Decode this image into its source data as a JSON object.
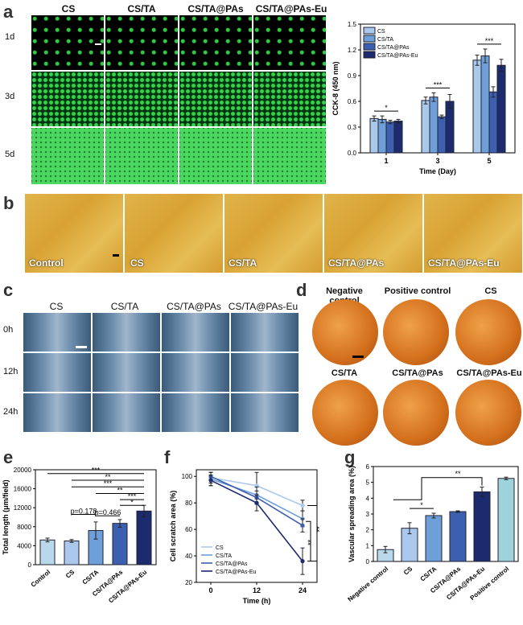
{
  "panels": {
    "a": "a",
    "b": "b",
    "c": "c",
    "d": "d",
    "e": "e",
    "f": "f",
    "g": "g"
  },
  "a": {
    "columns": [
      "CS",
      "CS/TA",
      "CS/TA@PAs",
      "CS/TA@PAs-Eu"
    ],
    "rows": [
      "1d",
      "3d",
      "5d"
    ]
  },
  "b": {
    "labels": [
      "Control",
      "CS",
      "CS/TA",
      "CS/TA@PAs",
      "CS/TA@PAs-Eu"
    ]
  },
  "c": {
    "columns": [
      "CS",
      "CS/TA",
      "CS/TA@PAs",
      "CS/TA@PAs-Eu"
    ],
    "rows": [
      "0h",
      "12h",
      "24h"
    ]
  },
  "d": {
    "labels": [
      "Negative control",
      "Positive control",
      "CS",
      "CS/TA",
      "CS/TA@PAs",
      "CS/TA@PAs-Eu"
    ]
  },
  "chart_data": [
    {
      "panel": "a",
      "type": "bar",
      "ylabel": "CCK-8 (450 nm)",
      "xlabel": "Time (Day)",
      "categories": [
        "1",
        "3",
        "5"
      ],
      "ylim": [
        0.0,
        1.5
      ],
      "yticks": [
        "0.0",
        "0.3",
        "0.6",
        "0.9",
        "1.2",
        "1.5"
      ],
      "series": [
        {
          "name": "CS",
          "color": "#a9c8ec",
          "values": [
            0.4,
            0.61,
            1.08
          ],
          "err": [
            0.03,
            0.04,
            0.06
          ]
        },
        {
          "name": "CS/TA",
          "color": "#6e9fd8",
          "values": [
            0.39,
            0.65,
            1.13
          ],
          "err": [
            0.04,
            0.05,
            0.08
          ]
        },
        {
          "name": "CS/TA@PAs",
          "color": "#3d5fb0",
          "values": [
            0.36,
            0.42,
            0.71
          ],
          "err": [
            0.02,
            0.02,
            0.06
          ]
        },
        {
          "name": "CS/TA@PAs-Eu",
          "color": "#1c2a6e",
          "values": [
            0.37,
            0.6,
            1.02
          ],
          "err": [
            0.02,
            0.08,
            0.07
          ]
        }
      ],
      "annotations": [
        "*",
        "***",
        "***"
      ]
    },
    {
      "panel": "e",
      "type": "bar",
      "ylabel": "Total length (μm/field)",
      "categories": [
        "Control",
        "CS",
        "CS/TA",
        "CS/TA@PAs",
        "CS/TA@PAs-Eu"
      ],
      "values": [
        5200,
        5000,
        7200,
        8700,
        11300
      ],
      "err": [
        400,
        300,
        1800,
        800,
        1200
      ],
      "colors": [
        "#b9d8ea",
        "#a9c8ec",
        "#6e9fd8",
        "#3d5fb0",
        "#1c2a6e"
      ],
      "ylim": [
        0,
        20000
      ],
      "yticks": [
        "0",
        "4000",
        "8000",
        "12000",
        "16000",
        "20000"
      ],
      "annotations": [
        "***",
        "**",
        "***",
        "**",
        "***",
        "*",
        "p=0.178",
        "p=0.466"
      ]
    },
    {
      "panel": "f",
      "type": "line",
      "ylabel": "Cell scratch area (%)",
      "xlabel": "Time (h)",
      "x": [
        0,
        12,
        24
      ],
      "xticks": [
        "0",
        "12",
        "24"
      ],
      "ylim": [
        20,
        105
      ],
      "yticks": [
        "20",
        "40",
        "60",
        "80",
        "100"
      ],
      "series": [
        {
          "name": "CS",
          "color": "#a9c8ec",
          "values": [
            99,
            93,
            78
          ],
          "err": [
            4,
            10,
            4
          ]
        },
        {
          "name": "CS/TA",
          "color": "#6e9fd8",
          "values": [
            98,
            86,
            68
          ],
          "err": [
            5,
            6,
            6
          ]
        },
        {
          "name": "CS/TA@PAs",
          "color": "#3d5fb0",
          "values": [
            100,
            84,
            63
          ],
          "err": [
            3,
            5,
            5
          ]
        },
        {
          "name": "CS/TA@PAs-Eu",
          "color": "#1c2a6e",
          "values": [
            97,
            80,
            36
          ],
          "err": [
            4,
            6,
            10
          ]
        }
      ],
      "annotations": [
        "**",
        "**"
      ]
    },
    {
      "panel": "g",
      "type": "bar",
      "ylabel": "Vascular spreading area (%)",
      "categories": [
        "Negative control",
        "CS",
        "CS/TA",
        "CS/TA@PAs",
        "CS/TA@PAs-Eu",
        "Positive control"
      ],
      "values": [
        0.75,
        2.1,
        2.9,
        3.15,
        4.4,
        5.25
      ],
      "err": [
        0.2,
        0.35,
        0.15,
        0.05,
        0.3,
        0.08
      ],
      "colors": [
        "#b9d8ea",
        "#a9c8ec",
        "#6e9fd8",
        "#3d5fb0",
        "#1c2a6e",
        "#9fd3dc"
      ],
      "ylim": [
        0,
        6
      ],
      "yticks": [
        "0",
        "1",
        "2",
        "3",
        "4",
        "5",
        "6"
      ],
      "annotations": [
        "*",
        "**"
      ]
    }
  ]
}
